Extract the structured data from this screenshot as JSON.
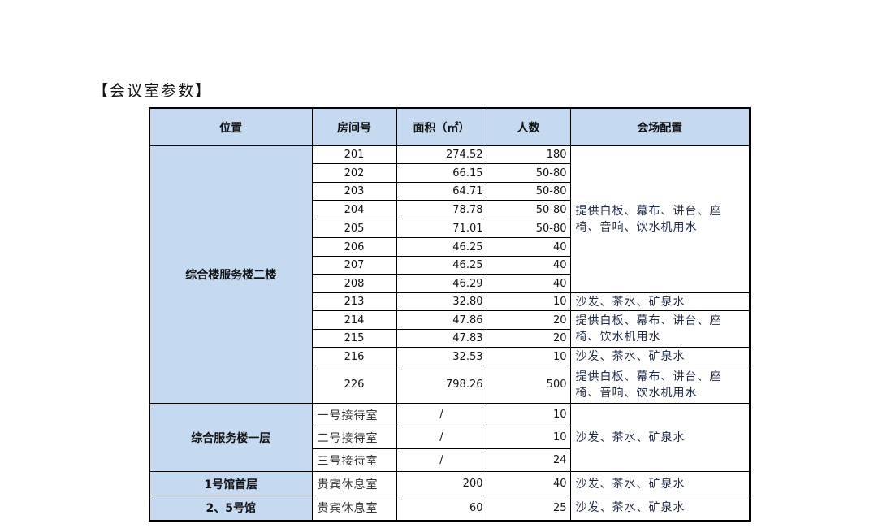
{
  "title": "【会议室参数】",
  "headers": [
    "位置",
    "房间号",
    "面积（㎡）",
    "人数",
    "会场配置"
  ],
  "groups": {
    "g1": "综合楼服务楼二楼",
    "g2": "综合服务楼一层",
    "g3": "1号馆首层",
    "g4": "2、5号馆"
  },
  "rows": [
    {
      "room": "201",
      "area": "274.52",
      "people": "180"
    },
    {
      "room": "202",
      "area": "66.15",
      "people": "50-80"
    },
    {
      "room": "203",
      "area": "64.71",
      "people": "50-80"
    },
    {
      "room": "204",
      "area": "78.78",
      "people": "50-80"
    },
    {
      "room": "205",
      "area": "71.01",
      "people": "50-80"
    },
    {
      "room": "206",
      "area": "46.25",
      "people": "40"
    },
    {
      "room": "207",
      "area": "46.25",
      "people": "40"
    },
    {
      "room": "208",
      "area": "46.29",
      "people": "40"
    },
    {
      "room": "213",
      "area": "32.80",
      "people": "10"
    },
    {
      "room": "214",
      "area": "47.86",
      "people": "20"
    },
    {
      "room": "215",
      "area": "47.83",
      "people": "20"
    },
    {
      "room": "216",
      "area": "32.53",
      "people": "10"
    },
    {
      "room": "226",
      "area": "798.26",
      "people": "500"
    },
    {
      "room": "一号接待室",
      "area": "/",
      "people": "10"
    },
    {
      "room": "二号接待室",
      "area": "/",
      "people": "10"
    },
    {
      "room": "三号接待室",
      "area": "/",
      "people": "24"
    },
    {
      "room": "贵宾休息室",
      "area": "200",
      "people": "40"
    },
    {
      "room": "贵宾休息室",
      "area": "60",
      "people": "25"
    }
  ],
  "configs": {
    "c1": "提供白板、幕布、讲台、座椅、音响、饮水机用水",
    "c2": "沙发、茶水、矿泉水",
    "c3": "提供白板、幕布、讲台、座椅、饮水机用水",
    "c4": "沙发、茶水、矿泉水",
    "c5": "提供白板、幕布、讲台、座椅、音响、饮水机用水",
    "c6": "沙发、茶水、矿泉水",
    "c7": "沙发、茶水、矿泉水",
    "c8": "沙发、茶水、矿泉水"
  }
}
